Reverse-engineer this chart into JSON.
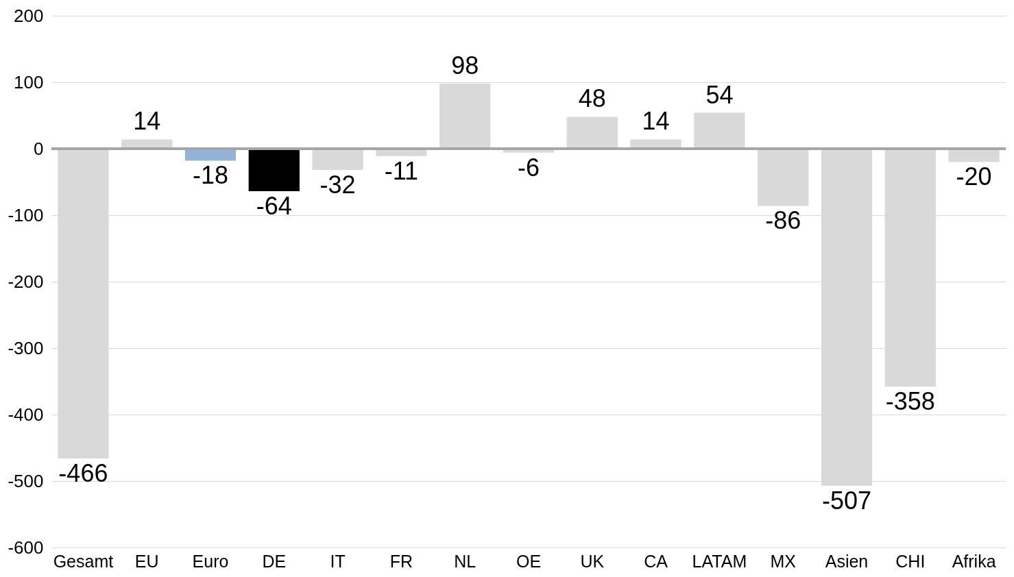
{
  "chart_data": {
    "type": "bar",
    "categories": [
      "Gesamt",
      "EU",
      "Euro",
      "DE",
      "IT",
      "FR",
      "NL",
      "OE",
      "UK",
      "CA",
      "LATAM",
      "MX",
      "Asien",
      "CHI",
      "Afrika"
    ],
    "values": [
      -466,
      14,
      -18,
      -64,
      -32,
      -11,
      98,
      -6,
      48,
      14,
      54,
      -86,
      -507,
      -358,
      -20
    ],
    "colors": [
      "#d9d9d9",
      "#d9d9d9",
      "#95b3d7",
      "#000000",
      "#d9d9d9",
      "#d9d9d9",
      "#d9d9d9",
      "#d9d9d9",
      "#d9d9d9",
      "#d9d9d9",
      "#d9d9d9",
      "#d9d9d9",
      "#d9d9d9",
      "#d9d9d9",
      "#d9d9d9"
    ],
    "ylim": [
      -600,
      200
    ],
    "yticks": [
      -600,
      -500,
      -400,
      -300,
      -200,
      -100,
      0,
      100,
      200
    ],
    "grid": "y",
    "data_labels": true,
    "ref_lines": [
      {
        "axis": "y",
        "value": 0,
        "color": "#a6a6a6"
      }
    ]
  }
}
